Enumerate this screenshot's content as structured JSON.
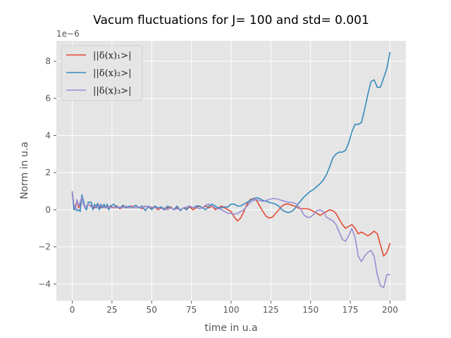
{
  "chart_data": {
    "type": "line",
    "title": "Vacum fluctuations for J= 100 and std= 0.001",
    "xlabel": "time in u.a",
    "ylabel": "Norm in u.a",
    "y_offset_label": "1e−6",
    "xlim": [
      -10,
      210
    ],
    "ylim": [
      -4.9,
      9.1
    ],
    "xticks": [
      0,
      25,
      50,
      75,
      100,
      125,
      150,
      175,
      200
    ],
    "yticks": [
      -4,
      -2,
      0,
      2,
      4,
      6,
      8
    ],
    "ytick_labels": [
      "−4",
      "−2",
      "0",
      "2",
      "4",
      "6",
      "8"
    ],
    "grid": true,
    "legend_position": "top-left",
    "colors": {
      "plot_bg": "#e5e5e5",
      "grid": "#ffffff"
    },
    "series": [
      {
        "name": "||δ(x)₁>|",
        "color": "#e24a33",
        "points": [
          [
            0,
            0.9
          ],
          [
            1,
            0.1
          ],
          [
            2,
            0.2
          ],
          [
            3,
            0.5
          ],
          [
            4,
            0.1
          ],
          [
            5,
            0.3
          ],
          [
            6,
            0.7
          ],
          [
            7,
            0.3
          ],
          [
            8,
            0.1
          ],
          [
            10,
            0.3
          ],
          [
            12,
            0.2
          ],
          [
            14,
            0.1
          ],
          [
            16,
            0.3
          ],
          [
            18,
            0.1
          ],
          [
            20,
            0.2
          ],
          [
            22,
            0.1
          ],
          [
            24,
            0.2
          ],
          [
            26,
            0.1
          ],
          [
            28,
            0.2
          ],
          [
            30,
            0.05
          ],
          [
            32,
            0.2
          ],
          [
            34,
            0.1
          ],
          [
            36,
            0.15
          ],
          [
            38,
            0.2
          ],
          [
            40,
            0.1
          ],
          [
            42,
            0.15
          ],
          [
            44,
            0.05
          ],
          [
            46,
            0.2
          ],
          [
            48,
            0.1
          ],
          [
            50,
            0.1
          ],
          [
            52,
            0.15
          ],
          [
            54,
            0.0
          ],
          [
            56,
            0.1
          ],
          [
            58,
            0.0
          ],
          [
            60,
            0.1
          ],
          [
            62,
            0.15
          ],
          [
            64,
            0.0
          ],
          [
            66,
            0.1
          ],
          [
            68,
            0.0
          ],
          [
            70,
            0.1
          ],
          [
            72,
            0.05
          ],
          [
            74,
            0.15
          ],
          [
            76,
            0.0
          ],
          [
            78,
            0.1
          ],
          [
            80,
            0.2
          ],
          [
            82,
            0.1
          ],
          [
            84,
            0.2
          ],
          [
            86,
            0.1
          ],
          [
            88,
            0.2
          ],
          [
            90,
            0.0
          ],
          [
            92,
            0.1
          ],
          [
            94,
            0.2
          ],
          [
            96,
            0.1
          ],
          [
            98,
            0.0
          ],
          [
            100,
            -0.1
          ],
          [
            102,
            -0.4
          ],
          [
            104,
            -0.6
          ],
          [
            106,
            -0.45
          ],
          [
            108,
            -0.1
          ],
          [
            110,
            0.3
          ],
          [
            112,
            0.55
          ],
          [
            114,
            0.6
          ],
          [
            116,
            0.5
          ],
          [
            118,
            0.2
          ],
          [
            120,
            -0.1
          ],
          [
            122,
            -0.35
          ],
          [
            124,
            -0.45
          ],
          [
            126,
            -0.4
          ],
          [
            128,
            -0.2
          ],
          [
            130,
            0.0
          ],
          [
            132,
            0.2
          ],
          [
            134,
            0.3
          ],
          [
            136,
            0.3
          ],
          [
            138,
            0.25
          ],
          [
            140,
            0.2
          ],
          [
            142,
            0.1
          ],
          [
            144,
            0.05
          ],
          [
            146,
            0.05
          ],
          [
            148,
            0.05
          ],
          [
            150,
            0.0
          ],
          [
            152,
            -0.1
          ],
          [
            154,
            -0.2
          ],
          [
            156,
            -0.3
          ],
          [
            158,
            -0.2
          ],
          [
            160,
            -0.1
          ],
          [
            162,
            0.0
          ],
          [
            164,
            -0.05
          ],
          [
            166,
            -0.2
          ],
          [
            168,
            -0.5
          ],
          [
            170,
            -0.8
          ],
          [
            172,
            -1.0
          ],
          [
            174,
            -0.9
          ],
          [
            176,
            -0.8
          ],
          [
            178,
            -1.0
          ],
          [
            180,
            -1.3
          ],
          [
            182,
            -1.2
          ],
          [
            184,
            -1.3
          ],
          [
            186,
            -1.4
          ],
          [
            188,
            -1.3
          ],
          [
            190,
            -1.15
          ],
          [
            192,
            -1.3
          ],
          [
            194,
            -1.9
          ],
          [
            196,
            -2.5
          ],
          [
            198,
            -2.3
          ],
          [
            200,
            -1.8
          ]
        ]
      },
      {
        "name": "||δ(x)₂>|",
        "color": "#348abd",
        "points": [
          [
            0,
            1.0
          ],
          [
            1,
            0.0
          ],
          [
            2,
            0.1
          ],
          [
            3,
            -0.05
          ],
          [
            4,
            0.0
          ],
          [
            5,
            -0.1
          ],
          [
            6,
            0.8
          ],
          [
            7,
            0.5
          ],
          [
            8,
            0.1
          ],
          [
            9,
            0.0
          ],
          [
            10,
            0.4
          ],
          [
            12,
            0.4
          ],
          [
            13,
            0.0
          ],
          [
            14,
            0.3
          ],
          [
            15,
            0.1
          ],
          [
            16,
            0.35
          ],
          [
            17,
            0.0
          ],
          [
            18,
            0.3
          ],
          [
            19,
            0.1
          ],
          [
            20,
            0.3
          ],
          [
            21,
            0.1
          ],
          [
            22,
            0.3
          ],
          [
            23,
            0.0
          ],
          [
            24,
            0.2
          ],
          [
            26,
            0.3
          ],
          [
            28,
            0.15
          ],
          [
            30,
            0.1
          ],
          [
            32,
            0.25
          ],
          [
            34,
            0.1
          ],
          [
            36,
            0.2
          ],
          [
            38,
            0.1
          ],
          [
            40,
            0.25
          ],
          [
            42,
            0.1
          ],
          [
            44,
            0.2
          ],
          [
            46,
            -0.05
          ],
          [
            48,
            0.2
          ],
          [
            50,
            0.0
          ],
          [
            52,
            0.2
          ],
          [
            54,
            0.1
          ],
          [
            56,
            0.15
          ],
          [
            58,
            0.0
          ],
          [
            60,
            0.2
          ],
          [
            62,
            0.1
          ],
          [
            64,
            0.0
          ],
          [
            66,
            0.2
          ],
          [
            68,
            -0.05
          ],
          [
            70,
            0.1
          ],
          [
            72,
            0.0
          ],
          [
            74,
            0.2
          ],
          [
            76,
            0.1
          ],
          [
            78,
            0.2
          ],
          [
            80,
            0.2
          ],
          [
            82,
            0.1
          ],
          [
            84,
            0.0
          ],
          [
            86,
            0.2
          ],
          [
            88,
            0.3
          ],
          [
            90,
            0.2
          ],
          [
            92,
            0.1
          ],
          [
            94,
            0.1
          ],
          [
            96,
            0.15
          ],
          [
            98,
            0.15
          ],
          [
            100,
            0.3
          ],
          [
            102,
            0.3
          ],
          [
            104,
            0.2
          ],
          [
            106,
            0.2
          ],
          [
            108,
            0.3
          ],
          [
            110,
            0.4
          ],
          [
            112,
            0.5
          ],
          [
            114,
            0.6
          ],
          [
            116,
            0.65
          ],
          [
            118,
            0.6
          ],
          [
            120,
            0.5
          ],
          [
            122,
            0.45
          ],
          [
            124,
            0.4
          ],
          [
            126,
            0.35
          ],
          [
            128,
            0.3
          ],
          [
            130,
            0.2
          ],
          [
            132,
            0.0
          ],
          [
            134,
            -0.1
          ],
          [
            136,
            -0.15
          ],
          [
            138,
            -0.1
          ],
          [
            140,
            0.05
          ],
          [
            142,
            0.3
          ],
          [
            144,
            0.5
          ],
          [
            146,
            0.7
          ],
          [
            148,
            0.85
          ],
          [
            150,
            1.0
          ],
          [
            152,
            1.1
          ],
          [
            154,
            1.25
          ],
          [
            156,
            1.4
          ],
          [
            158,
            1.6
          ],
          [
            160,
            1.9
          ],
          [
            162,
            2.3
          ],
          [
            164,
            2.8
          ],
          [
            166,
            3.0
          ],
          [
            168,
            3.1
          ],
          [
            170,
            3.1
          ],
          [
            172,
            3.2
          ],
          [
            174,
            3.6
          ],
          [
            176,
            4.2
          ],
          [
            178,
            4.6
          ],
          [
            180,
            4.6
          ],
          [
            182,
            4.7
          ],
          [
            184,
            5.4
          ],
          [
            186,
            6.2
          ],
          [
            188,
            6.9
          ],
          [
            190,
            7.0
          ],
          [
            192,
            6.6
          ],
          [
            194,
            6.6
          ],
          [
            196,
            7.1
          ],
          [
            198,
            7.6
          ],
          [
            200,
            8.5
          ]
        ]
      },
      {
        "name": "||δ(x)₃>|",
        "color": "#988ed5",
        "points": [
          [
            0,
            1.0
          ],
          [
            1,
            0.3
          ],
          [
            2,
            0.0
          ],
          [
            3,
            0.55
          ],
          [
            4,
            0.2
          ],
          [
            5,
            0.4
          ],
          [
            6,
            0.7
          ],
          [
            7,
            0.3
          ],
          [
            8,
            0.1
          ],
          [
            10,
            0.3
          ],
          [
            12,
            0.15
          ],
          [
            14,
            0.2
          ],
          [
            16,
            0.1
          ],
          [
            18,
            0.3
          ],
          [
            20,
            0.1
          ],
          [
            22,
            0.15
          ],
          [
            24,
            0.1
          ],
          [
            26,
            0.15
          ],
          [
            28,
            0.1
          ],
          [
            30,
            0.15
          ],
          [
            32,
            0.1
          ],
          [
            34,
            0.2
          ],
          [
            36,
            0.1
          ],
          [
            38,
            0.15
          ],
          [
            40,
            0.1
          ],
          [
            42,
            0.15
          ],
          [
            44,
            0.1
          ],
          [
            46,
            0.2
          ],
          [
            48,
            0.1
          ],
          [
            50,
            0.15
          ],
          [
            52,
            0.1
          ],
          [
            54,
            0.1
          ],
          [
            56,
            0.05
          ],
          [
            58,
            0.1
          ],
          [
            60,
            0.0
          ],
          [
            62,
            0.1
          ],
          [
            64,
            0.0
          ],
          [
            66,
            0.05
          ],
          [
            68,
            0.0
          ],
          [
            70,
            0.1
          ],
          [
            72,
            0.15
          ],
          [
            74,
            0.2
          ],
          [
            76,
            0.1
          ],
          [
            78,
            0.15
          ],
          [
            80,
            0.05
          ],
          [
            82,
            0.1
          ],
          [
            84,
            0.25
          ],
          [
            86,
            0.3
          ],
          [
            88,
            0.2
          ],
          [
            90,
            0.1
          ],
          [
            92,
            0.05
          ],
          [
            94,
            0.0
          ],
          [
            96,
            -0.1
          ],
          [
            98,
            -0.2
          ],
          [
            100,
            -0.2
          ],
          [
            102,
            -0.25
          ],
          [
            104,
            -0.2
          ],
          [
            106,
            -0.1
          ],
          [
            108,
            0.0
          ],
          [
            110,
            0.2
          ],
          [
            112,
            0.4
          ],
          [
            114,
            0.5
          ],
          [
            116,
            0.55
          ],
          [
            118,
            0.5
          ],
          [
            120,
            0.45
          ],
          [
            122,
            0.5
          ],
          [
            124,
            0.55
          ],
          [
            126,
            0.6
          ],
          [
            128,
            0.6
          ],
          [
            130,
            0.55
          ],
          [
            132,
            0.5
          ],
          [
            134,
            0.45
          ],
          [
            136,
            0.4
          ],
          [
            138,
            0.4
          ],
          [
            140,
            0.35
          ],
          [
            142,
            0.25
          ],
          [
            144,
            0.0
          ],
          [
            146,
            -0.3
          ],
          [
            148,
            -0.4
          ],
          [
            150,
            -0.4
          ],
          [
            152,
            -0.25
          ],
          [
            154,
            -0.05
          ],
          [
            156,
            0.0
          ],
          [
            158,
            -0.1
          ],
          [
            160,
            -0.4
          ],
          [
            162,
            -0.5
          ],
          [
            164,
            -0.6
          ],
          [
            166,
            -0.8
          ],
          [
            168,
            -1.2
          ],
          [
            170,
            -1.6
          ],
          [
            172,
            -1.7
          ],
          [
            174,
            -1.4
          ],
          [
            176,
            -1.0
          ],
          [
            178,
            -1.5
          ],
          [
            180,
            -2.5
          ],
          [
            182,
            -2.8
          ],
          [
            184,
            -2.5
          ],
          [
            186,
            -2.3
          ],
          [
            188,
            -2.2
          ],
          [
            190,
            -2.5
          ],
          [
            192,
            -3.5
          ],
          [
            194,
            -4.1
          ],
          [
            196,
            -4.2
          ],
          [
            198,
            -3.5
          ],
          [
            200,
            -3.5
          ]
        ]
      }
    ]
  }
}
